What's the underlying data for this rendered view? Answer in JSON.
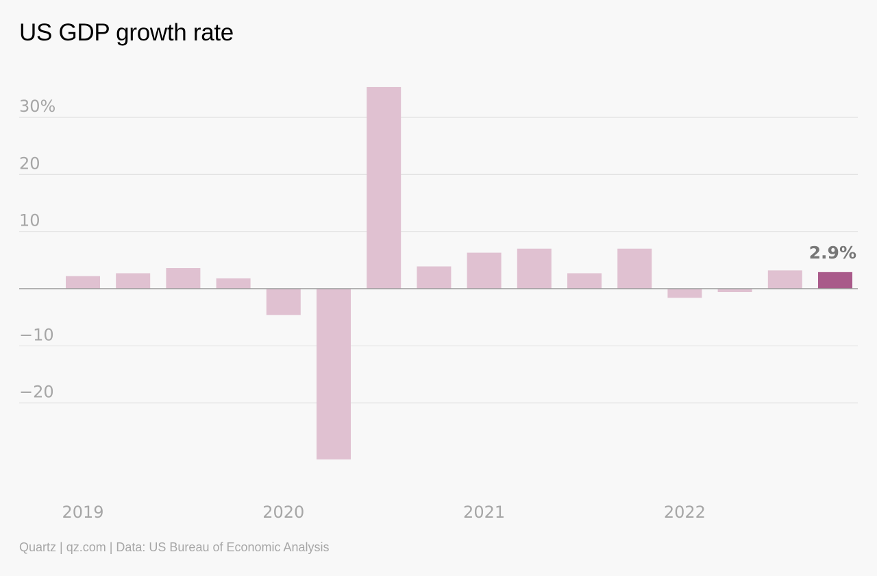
{
  "title": "US GDP growth rate",
  "footer": "Quartz | qz.com | Data: US Bureau of Economic Analysis",
  "colors": {
    "bar": "#e0c1d1",
    "highlight": "#a95a8a",
    "grid": "#e3e3e3",
    "axis": "#9a9a9a",
    "tick_text": "#a6a6a6",
    "annotation": "#777777"
  },
  "chart_data": {
    "type": "bar",
    "title": "US GDP growth rate",
    "xlabel": "",
    "ylabel": "",
    "ylim": [
      -30,
      35
    ],
    "grid": true,
    "categories": [
      "2019 Q1",
      "2019 Q2",
      "2019 Q3",
      "2019 Q4",
      "2020 Q1",
      "2020 Q2",
      "2020 Q3",
      "2020 Q4",
      "2021 Q1",
      "2021 Q2",
      "2021 Q3",
      "2021 Q4",
      "2022 Q1",
      "2022 Q2",
      "2022 Q3",
      "2022 Q4"
    ],
    "values": [
      2.2,
      2.7,
      3.6,
      1.8,
      -4.6,
      -29.9,
      35.3,
      3.9,
      6.3,
      7.0,
      2.7,
      7.0,
      -1.6,
      -0.6,
      3.2,
      2.9
    ],
    "highlight_index": 15,
    "yticks": [
      {
        "value": 30,
        "label": "30%"
      },
      {
        "value": 20,
        "label": "20"
      },
      {
        "value": 10,
        "label": "10"
      },
      {
        "value": -10,
        "label": "−10"
      },
      {
        "value": -20,
        "label": "−20"
      }
    ],
    "xticks": [
      {
        "index": 0,
        "label": "2019"
      },
      {
        "index": 4,
        "label": "2020"
      },
      {
        "index": 8,
        "label": "2021"
      },
      {
        "index": 12,
        "label": "2022"
      }
    ],
    "annotation": {
      "index": 15,
      "label": "2.9%"
    }
  }
}
